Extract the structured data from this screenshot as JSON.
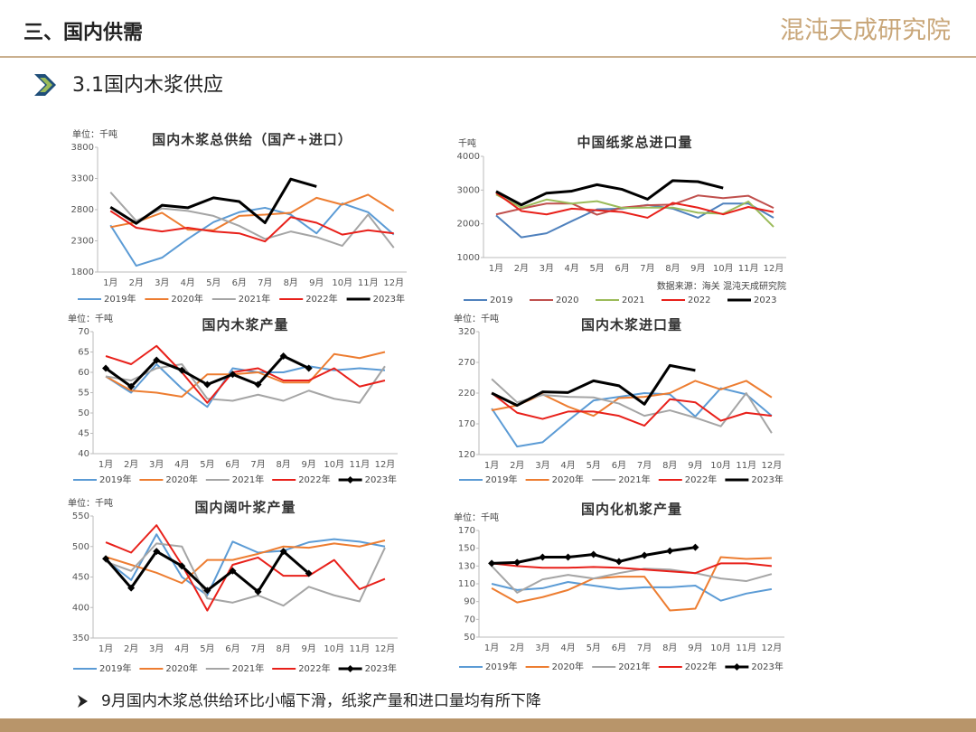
{
  "header": {
    "title": "三、国内供需",
    "logo": "混沌天成研究院"
  },
  "section": "3.1国内木浆供应",
  "footer": "9月国内木浆总供给环比小幅下滑，纸浆产量和进口量均有所下降",
  "chart_data": [
    {
      "type": "line",
      "title": "国内木浆总供给（国产+进口）",
      "unit": "单位：千吨",
      "categories": [
        "1月",
        "2月",
        "3月",
        "4月",
        "5月",
        "6月",
        "7月",
        "8月",
        "9月",
        "10月",
        "11月",
        "12月"
      ],
      "ylim": [
        1800,
        3800
      ],
      "yticks": [
        1800,
        2300,
        2800,
        3300,
        3800
      ],
      "series": [
        {
          "name": "2019年",
          "color": "#5b9bd5",
          "line_width": 2,
          "values": [
            2550,
            1900,
            2030,
            2330,
            2600,
            2760,
            2830,
            2720,
            2420,
            2900,
            2760,
            2400
          ]
        },
        {
          "name": "2020年",
          "color": "#ed7d31",
          "line_width": 2,
          "values": [
            2520,
            2600,
            2750,
            2480,
            2470,
            2700,
            2720,
            2750,
            2990,
            2880,
            3040,
            2780
          ]
        },
        {
          "name": "2021年",
          "color": "#a5a5a5",
          "line_width": 2,
          "values": [
            3080,
            2620,
            2820,
            2780,
            2700,
            2540,
            2330,
            2450,
            2360,
            2220,
            2720,
            2190
          ]
        },
        {
          "name": "2022年",
          "color": "#e8201a",
          "line_width": 2,
          "values": [
            2780,
            2510,
            2450,
            2510,
            2450,
            2420,
            2290,
            2680,
            2590,
            2400,
            2470,
            2420
          ]
        },
        {
          "name": "2023年",
          "color": "#000000",
          "line_width": 3,
          "values": [
            2840,
            2580,
            2870,
            2830,
            2990,
            2930,
            2590,
            3290,
            3170,
            null,
            null,
            null
          ]
        }
      ]
    },
    {
      "type": "line",
      "title": "中国纸浆总进口量",
      "unit": "千吨",
      "source": "数据来源：海关 混沌天成研究院",
      "categories": [
        "1月",
        "2月",
        "3月",
        "4月",
        "5月",
        "6月",
        "7月",
        "8月",
        "9月",
        "10月",
        "11月",
        "12月"
      ],
      "ylim": [
        1000,
        4000
      ],
      "yticks": [
        1000,
        2000,
        3000,
        4000
      ],
      "series": [
        {
          "name": "2019",
          "color": "#4f81bd",
          "line_width": 2,
          "values": [
            2250,
            1600,
            1720,
            2080,
            2430,
            2450,
            2560,
            2450,
            2180,
            2600,
            2600,
            2180
          ]
        },
        {
          "name": "2020",
          "color": "#c0504d",
          "line_width": 2,
          "values": [
            2280,
            2450,
            2600,
            2600,
            2270,
            2480,
            2550,
            2570,
            2840,
            2760,
            2830,
            2470
          ]
        },
        {
          "name": "2021",
          "color": "#9bbb59",
          "line_width": 2,
          "values": [
            2870,
            2480,
            2720,
            2600,
            2670,
            2470,
            2480,
            2480,
            2330,
            2300,
            2660,
            1910
          ]
        },
        {
          "name": "2022",
          "color": "#e8201a",
          "line_width": 2,
          "values": [
            2920,
            2380,
            2280,
            2450,
            2400,
            2350,
            2180,
            2620,
            2480,
            2280,
            2500,
            2350
          ]
        },
        {
          "name": "2023",
          "color": "#000000",
          "line_width": 3,
          "values": [
            2960,
            2560,
            2910,
            2970,
            3160,
            3020,
            2730,
            3280,
            3250,
            3060,
            null,
            null
          ]
        }
      ]
    },
    {
      "type": "line",
      "title": "国内木浆产量",
      "unit": "单位：千吨",
      "categories": [
        "1月",
        "2月",
        "3月",
        "4月",
        "5月",
        "6月",
        "7月",
        "8月",
        "9月",
        "10月",
        "11月",
        "12月"
      ],
      "ylim": [
        40,
        70
      ],
      "yticks": [
        40,
        45,
        50,
        55,
        60,
        65,
        70
      ],
      "series": [
        {
          "name": "2019年",
          "color": "#5b9bd5",
          "line_width": 2,
          "values": [
            59,
            55,
            62,
            56,
            51.5,
            61,
            60,
            60,
            61.5,
            60.5,
            61,
            60.5
          ]
        },
        {
          "name": "2020年",
          "color": "#ed7d31",
          "line_width": 2,
          "values": [
            59,
            55.5,
            55,
            54,
            59.5,
            59.5,
            60,
            57.5,
            57.5,
            64.5,
            63.5,
            65
          ]
        },
        {
          "name": "2021年",
          "color": "#a5a5a5",
          "line_width": 2,
          "values": [
            59,
            58,
            61,
            62,
            53.5,
            53,
            54.5,
            53,
            55.5,
            53.5,
            52.5,
            61.5
          ]
        },
        {
          "name": "2022年",
          "color": "#e8201a",
          "line_width": 2,
          "values": [
            64,
            62,
            66.5,
            60,
            52.5,
            60,
            61,
            58,
            58,
            61,
            56.5,
            58
          ]
        },
        {
          "name": "2023年",
          "color": "#000000",
          "line_width": 3,
          "marker": "diamond",
          "values": [
            61,
            56.5,
            63,
            60.5,
            57,
            59.5,
            57,
            64,
            61,
            null,
            null,
            null
          ]
        }
      ]
    },
    {
      "type": "line",
      "title": "国内木浆进口量",
      "unit": "单位：千吨",
      "categories": [
        "1月",
        "2月",
        "3月",
        "4月",
        "5月",
        "6月",
        "7月",
        "8月",
        "9月",
        "10月",
        "11月",
        "12月"
      ],
      "ylim": [
        120,
        320
      ],
      "yticks": [
        120,
        170,
        220,
        270,
        320
      ],
      "series": [
        {
          "name": "2019年",
          "color": "#5b9bd5",
          "line_width": 2,
          "values": [
            195,
            133,
            140,
            175,
            208,
            214,
            220,
            218,
            182,
            228,
            218,
            183
          ]
        },
        {
          "name": "2020年",
          "color": "#ed7d31",
          "line_width": 2,
          "values": [
            192,
            200,
            218,
            198,
            183,
            212,
            214,
            220,
            240,
            226,
            240,
            213
          ]
        },
        {
          "name": "2021年",
          "color": "#a5a5a5",
          "line_width": 2,
          "values": [
            243,
            205,
            217,
            214,
            213,
            203,
            183,
            192,
            180,
            166,
            220,
            155
          ]
        },
        {
          "name": "2022年",
          "color": "#e8201a",
          "line_width": 2,
          "values": [
            220,
            188,
            178,
            190,
            190,
            183,
            167,
            210,
            205,
            175,
            188,
            183
          ]
        },
        {
          "name": "2023年",
          "color": "#000000",
          "line_width": 3,
          "values": [
            220,
            200,
            222,
            221,
            240,
            232,
            202,
            265,
            257,
            null,
            null,
            null
          ]
        }
      ]
    },
    {
      "type": "line",
      "title": "国内阔叶浆产量",
      "unit": "单位：千吨",
      "categories": [
        "1月",
        "2月",
        "3月",
        "4月",
        "5月",
        "6月",
        "7月",
        "8月",
        "9月",
        "10月",
        "11月",
        "12月"
      ],
      "ylim": [
        350,
        550
      ],
      "yticks": [
        350,
        400,
        450,
        500,
        550
      ],
      "series": [
        {
          "name": "2019年",
          "color": "#5b9bd5",
          "line_width": 2,
          "values": [
            478,
            445,
            520,
            450,
            420,
            508,
            490,
            493,
            507,
            512,
            508,
            500
          ]
        },
        {
          "name": "2020年",
          "color": "#ed7d31",
          "line_width": 2,
          "values": [
            483,
            470,
            457,
            440,
            478,
            478,
            488,
            500,
            498,
            505,
            500,
            510
          ]
        },
        {
          "name": "2021年",
          "color": "#a5a5a5",
          "line_width": 2,
          "values": [
            475,
            460,
            505,
            500,
            415,
            408,
            420,
            403,
            434,
            420,
            410,
            498
          ]
        },
        {
          "name": "2022年",
          "color": "#e8201a",
          "line_width": 2,
          "values": [
            507,
            490,
            535,
            470,
            395,
            470,
            482,
            452,
            452,
            478,
            430,
            447
          ]
        },
        {
          "name": "2023年",
          "color": "#000000",
          "line_width": 3,
          "marker": "diamond",
          "values": [
            480,
            432,
            492,
            468,
            428,
            460,
            426,
            492,
            456,
            null,
            null,
            null
          ]
        }
      ]
    },
    {
      "type": "line",
      "title": "国内化机浆产量",
      "unit": "单位：千吨",
      "categories": [
        "1月",
        "2月",
        "3月",
        "4月",
        "5月",
        "6月",
        "7月",
        "8月",
        "9月",
        "10月",
        "11月",
        "12月"
      ],
      "ylim": [
        50,
        170
      ],
      "yticks": [
        50,
        70,
        90,
        110,
        130,
        150,
        170
      ],
      "series": [
        {
          "name": "2019年",
          "color": "#5b9bd5",
          "line_width": 2,
          "values": [
            110,
            103,
            105,
            112,
            108,
            104,
            106,
            106,
            108,
            91,
            99,
            104
          ]
        },
        {
          "name": "2020年",
          "color": "#ed7d31",
          "line_width": 2,
          "values": [
            105,
            89,
            95,
            103,
            116,
            118,
            118,
            80,
            82,
            140,
            138,
            139
          ]
        },
        {
          "name": "2021年",
          "color": "#a5a5a5",
          "line_width": 2,
          "values": [
            130,
            100,
            115,
            120,
            116,
            122,
            127,
            126,
            122,
            116,
            113,
            121
          ]
        },
        {
          "name": "2022年",
          "color": "#e8201a",
          "line_width": 2,
          "values": [
            133,
            130,
            128,
            128,
            129,
            128,
            126,
            124,
            122,
            133,
            133,
            130
          ]
        },
        {
          "name": "2023年",
          "color": "#000000",
          "line_width": 3,
          "marker": "diamond",
          "values": [
            133,
            134,
            140,
            140,
            143,
            135,
            142,
            147,
            151,
            null,
            null,
            null
          ]
        }
      ]
    }
  ]
}
